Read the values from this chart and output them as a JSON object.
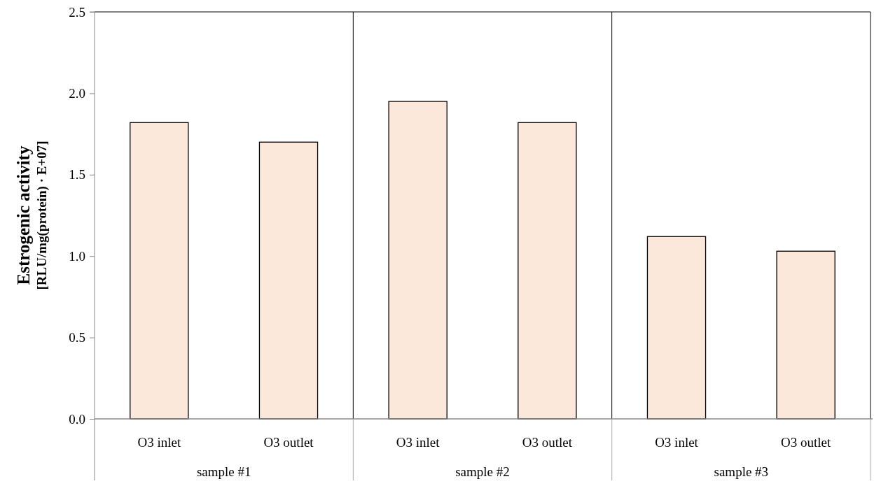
{
  "chart_data": {
    "type": "bar",
    "ylabel": "Estrogenic activity\n[RLU/mg(protein) · E+07]",
    "categories": [
      "O3 inlet",
      "O3 outlet",
      "O3 inlet",
      "O3 outlet",
      "O3 inlet",
      "O3 outlet"
    ],
    "values": [
      1.82,
      1.7,
      1.95,
      1.82,
      1.12,
      1.03
    ],
    "color": "#fce8da",
    "ylim": [
      0,
      2.5
    ],
    "yticks": [
      {
        "value": 0,
        "label": "0.0"
      },
      {
        "value": 0.5,
        "label": "0.5"
      },
      {
        "value": 1,
        "label": "1.0"
      },
      {
        "value": 1.5,
        "label": "1.5"
      },
      {
        "value": 2,
        "label": "2.0"
      },
      {
        "value": 2.5,
        "label": "2.5"
      }
    ],
    "grid": false,
    "annotations": [
      "sample #1",
      "sample #2",
      "sample #3"
    ]
  }
}
